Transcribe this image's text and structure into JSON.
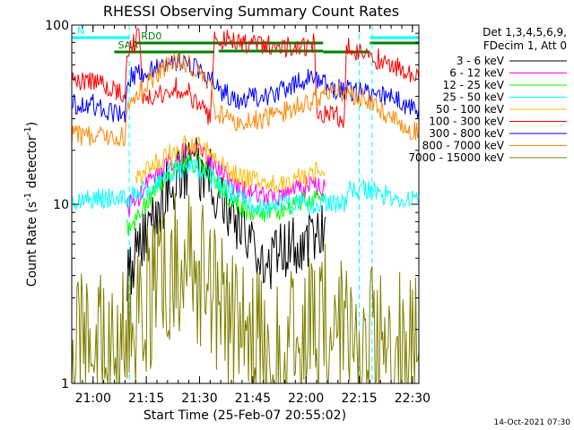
{
  "chart_data": {
    "type": "line",
    "title": "RHESSI Observing Summary Count Rates",
    "xlabel": "Start Time (25-Feb-07 20:55:02)",
    "ylabel_prefix": "Count Rate (s",
    "ylabel_exp": "-1",
    "ylabel_mid": " detector",
    "ylabel_suffix": ")",
    "y_scale": "log",
    "ylim": [
      1,
      100
    ],
    "x_domain_minutes": [
      20.9,
      22.53
    ],
    "y_ticks": [
      {
        "value": 1,
        "label": "1"
      },
      {
        "value": 10,
        "label": "10"
      },
      {
        "value": 100,
        "label": "100"
      }
    ],
    "x_ticks": [
      {
        "value": 21.0,
        "label": "21:00"
      },
      {
        "value": 21.25,
        "label": "21:15"
      },
      {
        "value": 21.5,
        "label": "21:30"
      },
      {
        "value": 21.75,
        "label": "21:45"
      },
      {
        "value": 22.0,
        "label": "22:00"
      },
      {
        "value": 22.25,
        "label": "22:15"
      },
      {
        "value": 22.5,
        "label": "22:30"
      }
    ],
    "legend_header": [
      "Det 1,3,4,5,6,9,",
      "FDecim 1, Att 0"
    ],
    "series": [
      {
        "name": "3 - 6 keV",
        "color": "#000000",
        "points": [
          [
            21.16,
            4.0
          ],
          [
            21.21,
            5.5
          ],
          [
            21.27,
            8.0
          ],
          [
            21.33,
            11
          ],
          [
            21.4,
            14
          ],
          [
            21.45,
            16.5
          ],
          [
            21.5,
            15.5
          ],
          [
            21.55,
            13.5
          ],
          [
            21.6,
            11.5
          ],
          [
            21.65,
            8.5
          ],
          [
            21.7,
            6.5
          ],
          [
            21.75,
            5.2
          ],
          [
            21.8,
            5.0
          ],
          [
            21.85,
            5.0
          ],
          [
            21.9,
            5.5
          ],
          [
            21.95,
            6.0
          ],
          [
            22.0,
            6.5
          ],
          [
            22.05,
            7.0
          ],
          [
            22.09,
            8.5
          ]
        ]
      },
      {
        "name": "6 - 12 keV",
        "color": "#ff00ff",
        "points": [
          [
            21.16,
            9.5
          ],
          [
            21.21,
            11
          ],
          [
            21.27,
            13.5
          ],
          [
            21.33,
            16
          ],
          [
            21.4,
            18.5
          ],
          [
            21.45,
            20
          ],
          [
            21.5,
            19
          ],
          [
            21.55,
            17.5
          ],
          [
            21.6,
            15.5
          ],
          [
            21.65,
            13
          ],
          [
            21.7,
            12
          ],
          [
            21.75,
            11.5
          ],
          [
            21.8,
            11
          ],
          [
            21.85,
            11
          ],
          [
            21.9,
            11.5
          ],
          [
            21.95,
            12
          ],
          [
            22.0,
            12.5
          ],
          [
            22.05,
            12.5
          ],
          [
            22.09,
            12.5
          ]
        ]
      },
      {
        "name": "12 - 25 keV",
        "color": "#00ff00",
        "points": [
          [
            21.16,
            7.5
          ],
          [
            21.21,
            8.5
          ],
          [
            21.27,
            11
          ],
          [
            21.33,
            14
          ],
          [
            21.4,
            16.5
          ],
          [
            21.45,
            17.5
          ],
          [
            21.5,
            16.5
          ],
          [
            21.55,
            14.5
          ],
          [
            21.6,
            12.5
          ],
          [
            21.65,
            10.5
          ],
          [
            21.7,
            9.5
          ],
          [
            21.75,
            9.0
          ],
          [
            21.8,
            9.0
          ],
          [
            21.85,
            9.0
          ],
          [
            21.9,
            9.5
          ],
          [
            21.95,
            10
          ],
          [
            22.0,
            10.5
          ],
          [
            22.05,
            11
          ],
          [
            22.09,
            11
          ]
        ]
      },
      {
        "name": "25 - 50 keV",
        "color": "#00ffff",
        "points": [
          [
            20.9,
            10.5
          ],
          [
            21.0,
            10.5
          ],
          [
            21.1,
            11
          ],
          [
            21.16,
            11
          ],
          [
            21.21,
            11.5
          ],
          [
            21.27,
            12.5
          ],
          [
            21.33,
            14
          ],
          [
            21.4,
            15.5
          ],
          [
            21.45,
            16
          ],
          [
            21.5,
            15.5
          ],
          [
            21.55,
            14
          ],
          [
            21.6,
            12.5
          ],
          [
            21.65,
            11.5
          ],
          [
            21.7,
            10.5
          ],
          [
            21.75,
            10
          ],
          [
            21.8,
            9.5
          ],
          [
            21.85,
            9.5
          ],
          [
            21.9,
            10
          ],
          [
            21.95,
            10
          ],
          [
            22.0,
            10
          ],
          [
            22.05,
            10
          ],
          [
            22.1,
            10
          ],
          [
            22.15,
            10
          ],
          [
            22.18,
            10
          ],
          [
            22.2,
            12
          ],
          [
            22.3,
            12
          ],
          [
            22.4,
            11
          ],
          [
            22.53,
            10.5
          ]
        ]
      },
      {
        "name": "50 - 100 keV",
        "color": "#ffbb00",
        "points": [
          [
            21.2,
            14
          ],
          [
            21.27,
            16
          ],
          [
            21.33,
            18.5
          ],
          [
            21.4,
            20.5
          ],
          [
            21.45,
            22
          ],
          [
            21.5,
            21
          ],
          [
            21.55,
            19
          ],
          [
            21.6,
            17
          ],
          [
            21.65,
            15
          ],
          [
            21.7,
            14
          ],
          [
            21.75,
            13.5
          ],
          [
            21.8,
            13
          ],
          [
            21.85,
            13
          ],
          [
            21.9,
            13.5
          ],
          [
            21.95,
            14
          ],
          [
            22.0,
            14.5
          ],
          [
            22.05,
            15
          ],
          [
            22.09,
            15
          ]
        ]
      },
      {
        "name": "100 - 300 keV",
        "color": "#ff0000",
        "points": [
          [
            20.9,
            50
          ],
          [
            21.0,
            49
          ],
          [
            21.05,
            47
          ],
          [
            21.1,
            44
          ],
          [
            21.15,
            42
          ],
          [
            21.16,
            75
          ],
          [
            21.2,
            80
          ],
          [
            21.22,
            90
          ],
          [
            21.23,
            42
          ],
          [
            21.27,
            38
          ],
          [
            21.33,
            42
          ],
          [
            21.4,
            45
          ],
          [
            21.45,
            42
          ],
          [
            21.5,
            36
          ],
          [
            21.55,
            30
          ],
          [
            21.57,
            90
          ],
          [
            21.6,
            83
          ],
          [
            21.7,
            80
          ],
          [
            21.8,
            77
          ],
          [
            21.9,
            75
          ],
          [
            22.0,
            75
          ],
          [
            22.04,
            80
          ],
          [
            22.05,
            32
          ],
          [
            22.1,
            31
          ],
          [
            22.15,
            31
          ],
          [
            22.18,
            29
          ],
          [
            22.19,
            75
          ],
          [
            22.3,
            68
          ],
          [
            22.4,
            60
          ],
          [
            22.53,
            50
          ]
        ]
      },
      {
        "name": "300 - 800 keV",
        "color": "#0000ff",
        "points": [
          [
            20.9,
            36
          ],
          [
            21.0,
            36
          ],
          [
            21.05,
            34
          ],
          [
            21.1,
            32
          ],
          [
            21.15,
            31
          ],
          [
            21.16,
            50
          ],
          [
            21.2,
            52
          ],
          [
            21.27,
            56
          ],
          [
            21.33,
            60
          ],
          [
            21.4,
            63
          ],
          [
            21.45,
            60
          ],
          [
            21.5,
            55
          ],
          [
            21.55,
            48
          ],
          [
            21.57,
            50
          ],
          [
            21.6,
            43
          ],
          [
            21.65,
            40
          ],
          [
            21.7,
            38
          ],
          [
            21.75,
            39
          ],
          [
            21.8,
            40
          ],
          [
            21.85,
            42
          ],
          [
            21.9,
            44
          ],
          [
            21.95,
            47
          ],
          [
            22.0,
            50
          ],
          [
            22.05,
            48
          ],
          [
            22.1,
            46
          ],
          [
            22.15,
            44
          ],
          [
            22.2,
            43
          ],
          [
            22.3,
            42
          ],
          [
            22.4,
            39
          ],
          [
            22.53,
            34
          ]
        ]
      },
      {
        "name": "800 - 7000 keV",
        "color": "#ff8800",
        "points": [
          [
            20.9,
            24
          ],
          [
            21.0,
            24
          ],
          [
            21.05,
            24
          ],
          [
            21.1,
            24
          ],
          [
            21.15,
            24
          ],
          [
            21.16,
            36
          ],
          [
            21.2,
            40
          ],
          [
            21.27,
            50
          ],
          [
            21.33,
            58
          ],
          [
            21.4,
            63
          ],
          [
            21.45,
            60
          ],
          [
            21.5,
            54
          ],
          [
            21.55,
            46
          ],
          [
            21.57,
            35
          ],
          [
            21.6,
            31
          ],
          [
            21.65,
            30
          ],
          [
            21.7,
            29
          ],
          [
            21.75,
            29
          ],
          [
            21.8,
            30
          ],
          [
            21.85,
            31
          ],
          [
            21.9,
            33
          ],
          [
            21.95,
            35
          ],
          [
            22.0,
            37
          ],
          [
            22.05,
            39
          ],
          [
            22.1,
            41
          ],
          [
            22.15,
            43
          ],
          [
            22.2,
            42
          ],
          [
            22.3,
            38
          ],
          [
            22.4,
            30
          ],
          [
            22.53,
            25
          ]
        ]
      },
      {
        "name": "7000 - 15000 keV",
        "color": "#808000",
        "points": [
          [
            20.9,
            1.5
          ],
          [
            21.0,
            1.5
          ],
          [
            21.1,
            1.5
          ],
          [
            21.16,
            2.0
          ],
          [
            21.21,
            2.5
          ],
          [
            21.27,
            3.3
          ],
          [
            21.33,
            4.5
          ],
          [
            21.4,
            5.0
          ],
          [
            21.45,
            4.6
          ],
          [
            21.5,
            4.0
          ],
          [
            21.55,
            3.3
          ],
          [
            21.6,
            2.6
          ],
          [
            21.65,
            2.0
          ],
          [
            21.7,
            1.6
          ],
          [
            21.8,
            1.5
          ],
          [
            21.9,
            1.5
          ],
          [
            22.0,
            1.8
          ],
          [
            22.05,
            2.5
          ],
          [
            22.1,
            2.2
          ],
          [
            22.2,
            2.0
          ],
          [
            22.3,
            1.8
          ],
          [
            22.4,
            1.5
          ],
          [
            22.53,
            1.5
          ]
        ]
      }
    ],
    "flags": [
      {
        "label": "N",
        "color": "#00ffff",
        "level": 0,
        "start": 20.9,
        "end": 21.17
      },
      {
        "label": "",
        "color": "#00ffff",
        "level": 0,
        "start": 22.3,
        "end": 22.53
      },
      {
        "label": "RD0",
        "color": "#008000",
        "level": 1,
        "start": 21.2,
        "end": 22.08
      },
      {
        "label": "",
        "color": "#008000",
        "level": 1,
        "start": 22.3,
        "end": 22.53
      },
      {
        "label": "",
        "color": "#008000",
        "level": 2,
        "start": 21.59,
        "end": 22.08
      },
      {
        "label": "SAA",
        "color": "#008000",
        "level": 3,
        "start": 21.1,
        "end": 21.57
      },
      {
        "label": "",
        "color": "#008000",
        "level": 3,
        "start": 22.08,
        "end": 22.3
      }
    ],
    "vlines": [
      21.17,
      22.25,
      22.31,
      22.53
    ],
    "timestamp": "14-Oct-2021 07:30"
  }
}
